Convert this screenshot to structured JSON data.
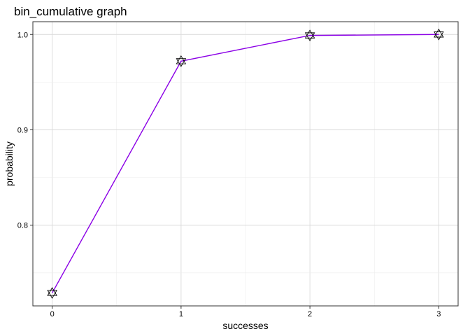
{
  "chart_data": {
    "type": "line",
    "title": "bin_cumulative graph",
    "xlabel": "successes",
    "ylabel": "probability",
    "x": [
      0,
      1,
      2,
      3
    ],
    "x_ticks": [
      "0",
      "1",
      "2",
      "3"
    ],
    "y_ticks": [
      "0.8",
      "0.9",
      "1.0"
    ],
    "xlim": [
      -0.15,
      3.15
    ],
    "ylim": [
      0.7154,
      1.0134
    ],
    "grid": true,
    "legend": "none",
    "series": [
      {
        "values": [
          0.729,
          0.972,
          0.999,
          1.0
        ],
        "color": "#8b00e6",
        "marker": "star-of-david"
      }
    ]
  }
}
